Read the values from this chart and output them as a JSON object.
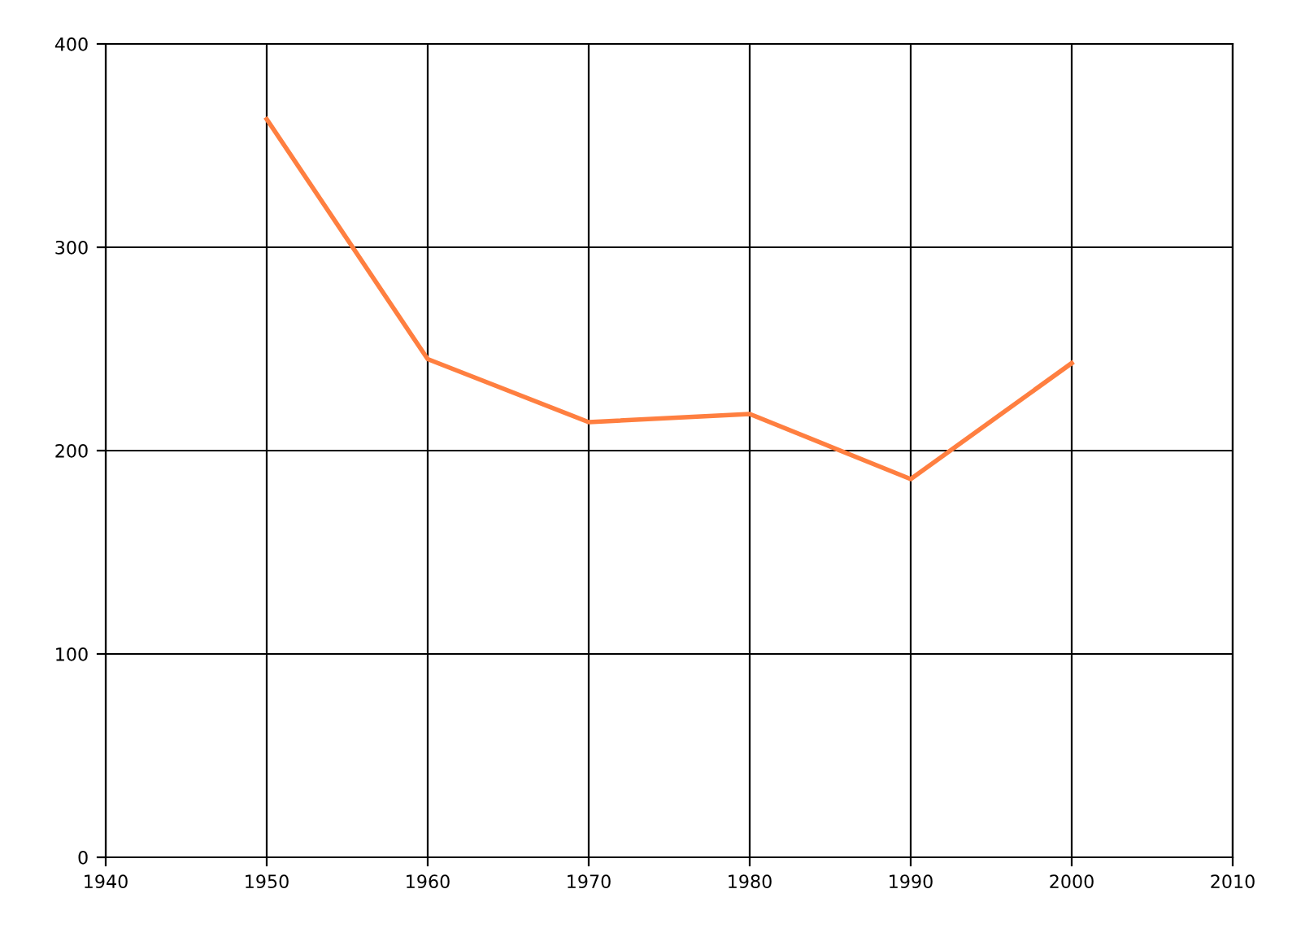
{
  "chart_data": {
    "type": "line",
    "x": [
      1950,
      1960,
      1970,
      1980,
      1990,
      2000
    ],
    "series": [
      {
        "color": "#ff7f40",
        "values": [
          363,
          245,
          214,
          218,
          186,
          243
        ]
      }
    ],
    "xlim": [
      1940,
      2010
    ],
    "xticks": [
      1940,
      1950,
      1960,
      1970,
      1980,
      1990,
      2000,
      2010
    ],
    "ylim": [
      0,
      400
    ],
    "yticks": [
      0,
      100,
      200,
      300,
      400
    ],
    "grid": true,
    "marker": "none",
    "line_style": "solid"
  }
}
